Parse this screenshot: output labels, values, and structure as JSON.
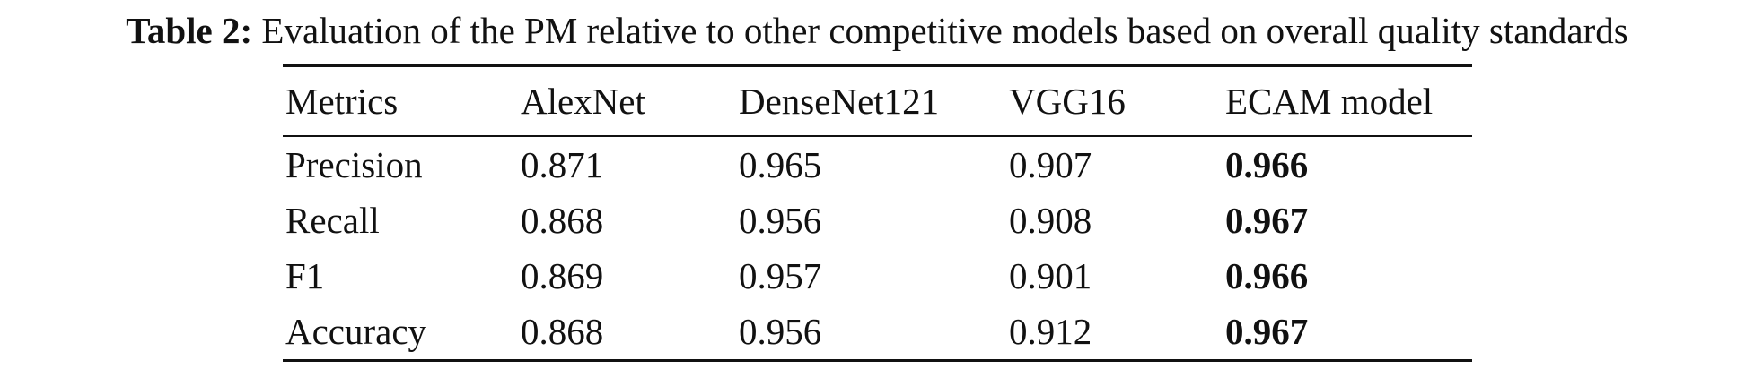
{
  "caption": {
    "label": "Table 2:",
    "text": "Evaluation of the PM relative to other competitive models based on overall quality standards"
  },
  "table": {
    "header": [
      "Metrics",
      "AlexNet",
      "DenseNet121",
      "VGG16",
      "ECAM model"
    ],
    "rows": [
      [
        "Precision",
        "0.871",
        "0.965",
        "0.907",
        "0.966"
      ],
      [
        "Recall",
        "0.868",
        "0.956",
        "0.908",
        "0.967"
      ],
      [
        "F1",
        "0.869",
        "0.957",
        "0.901",
        "0.966"
      ],
      [
        "Accuracy",
        "0.868",
        "0.956",
        "0.912",
        "0.967"
      ]
    ]
  }
}
